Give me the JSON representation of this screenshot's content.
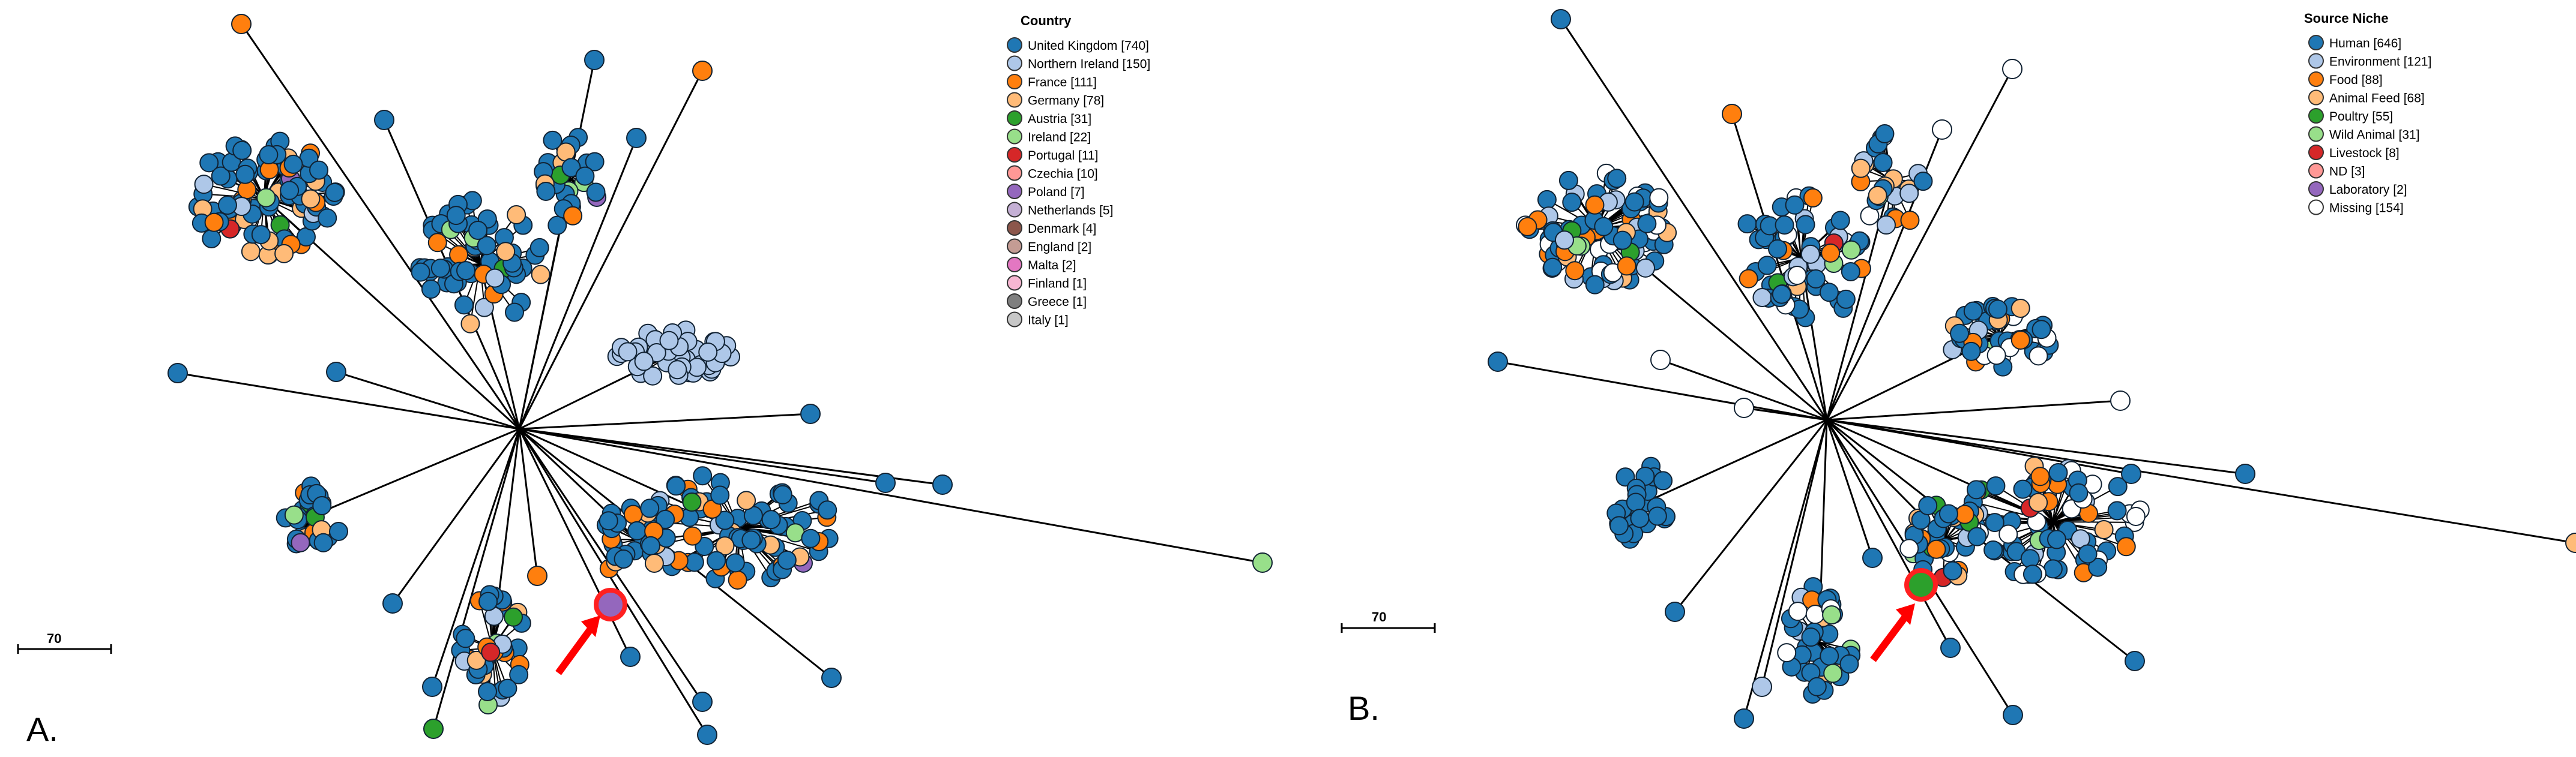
{
  "panels": [
    {
      "id": "A",
      "label": "A.",
      "scale_label": "70",
      "legend": {
        "title": "Country",
        "items": [
          {
            "label": "United Kingdom [740]",
            "color": "#1f77b4",
            "count": 740
          },
          {
            "label": "Northern Ireland [150]",
            "color": "#aec7e8",
            "count": 150
          },
          {
            "label": "France [111]",
            "color": "#ff7f0e",
            "count": 111
          },
          {
            "label": "Germany [78]",
            "color": "#ffbb78",
            "count": 78
          },
          {
            "label": "Austria [31]",
            "color": "#2ca02c",
            "count": 31
          },
          {
            "label": "Ireland [22]",
            "color": "#98df8a",
            "count": 22
          },
          {
            "label": "Portugal [11]",
            "color": "#d62728",
            "count": 11
          },
          {
            "label": "Czechia [10]",
            "color": "#ff9896",
            "count": 10
          },
          {
            "label": "Poland [7]",
            "color": "#9467bd",
            "count": 7
          },
          {
            "label": "Netherlands [5]",
            "color": "#c5b0d5",
            "count": 5
          },
          {
            "label": "Denmark [4]",
            "color": "#8c564b",
            "count": 4
          },
          {
            "label": "England [2]",
            "color": "#c49c94",
            "count": 2
          },
          {
            "label": "Malta [2]",
            "color": "#e377c2",
            "count": 2
          },
          {
            "label": "Finland [1]",
            "color": "#f7b6d2",
            "count": 1
          },
          {
            "label": "Greece [1]",
            "color": "#7f7f7f",
            "count": 1
          },
          {
            "label": "Italy [1]",
            "color": "#c7c7c7",
            "count": 1
          }
        ]
      }
    },
    {
      "id": "B",
      "label": "B.",
      "scale_label": "70",
      "legend": {
        "title": "Source Niche",
        "items": [
          {
            "label": "Human [646]",
            "color": "#1f77b4",
            "count": 646
          },
          {
            "label": "Environment [121]",
            "color": "#aec7e8",
            "count": 121
          },
          {
            "label": "Food [88]",
            "color": "#ff7f0e",
            "count": 88
          },
          {
            "label": "Animal Feed [68]",
            "color": "#ffbb78",
            "count": 68
          },
          {
            "label": "Poultry [55]",
            "color": "#2ca02c",
            "count": 55
          },
          {
            "label": "Wild Animal [31]",
            "color": "#98df8a",
            "count": 31
          },
          {
            "label": "Livestock [8]",
            "color": "#d62728",
            "count": 8
          },
          {
            "label": "ND [3]",
            "color": "#ff9896",
            "count": 3
          },
          {
            "label": "Laboratory [2]",
            "color": "#9467bd",
            "count": 2
          },
          {
            "label": "Missing [154]",
            "color": "#ffffff",
            "count": 154
          }
        ]
      }
    }
  ],
  "highlight_arrow_color": "#ff0000"
}
